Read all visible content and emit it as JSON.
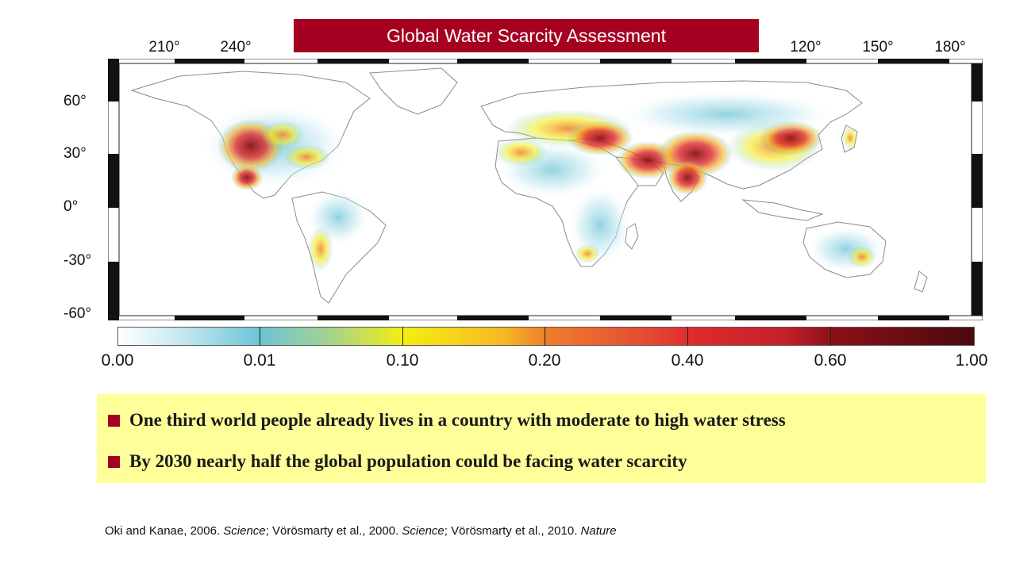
{
  "title": "Global Water Scarcity Assessment",
  "map": {
    "type": "global water stress map (equirectangular)",
    "longitude_labels": [
      "210°",
      "240°",
      "120°",
      "150°",
      "180°"
    ],
    "latitude_labels": [
      "60°",
      "30°",
      "0°",
      "-30°",
      "-60°"
    ],
    "colorbar": {
      "labels": [
        "0.00",
        "0.01",
        "0.10",
        "0.20",
        "0.40",
        "0.60",
        "1.00"
      ],
      "colors": [
        "#ffffff",
        "#6cc4d6",
        "#f4ee10",
        "#ef7d2b",
        "#e02c2c",
        "#8c1018",
        "#4a0a0e"
      ]
    },
    "land_color": "#ffffff",
    "border_color": "#9a9a9a"
  },
  "bullets": [
    "One third world people already lives in a country with moderate to high water stress",
    "By 2030 nearly half the global population could be facing water scarcity"
  ],
  "citation": {
    "part1": "Oki and Kanae, 2006. ",
    "journal1": "Science",
    "part2": "; Vörösmarty et al., 2000. ",
    "journal2": "Science",
    "part3": "; Vörösmarty et al., 2010. ",
    "journal3": "Nature"
  },
  "colors": {
    "banner": "#a50021",
    "bullet_box": "#ffff99",
    "bullet_marker": "#a50021"
  }
}
